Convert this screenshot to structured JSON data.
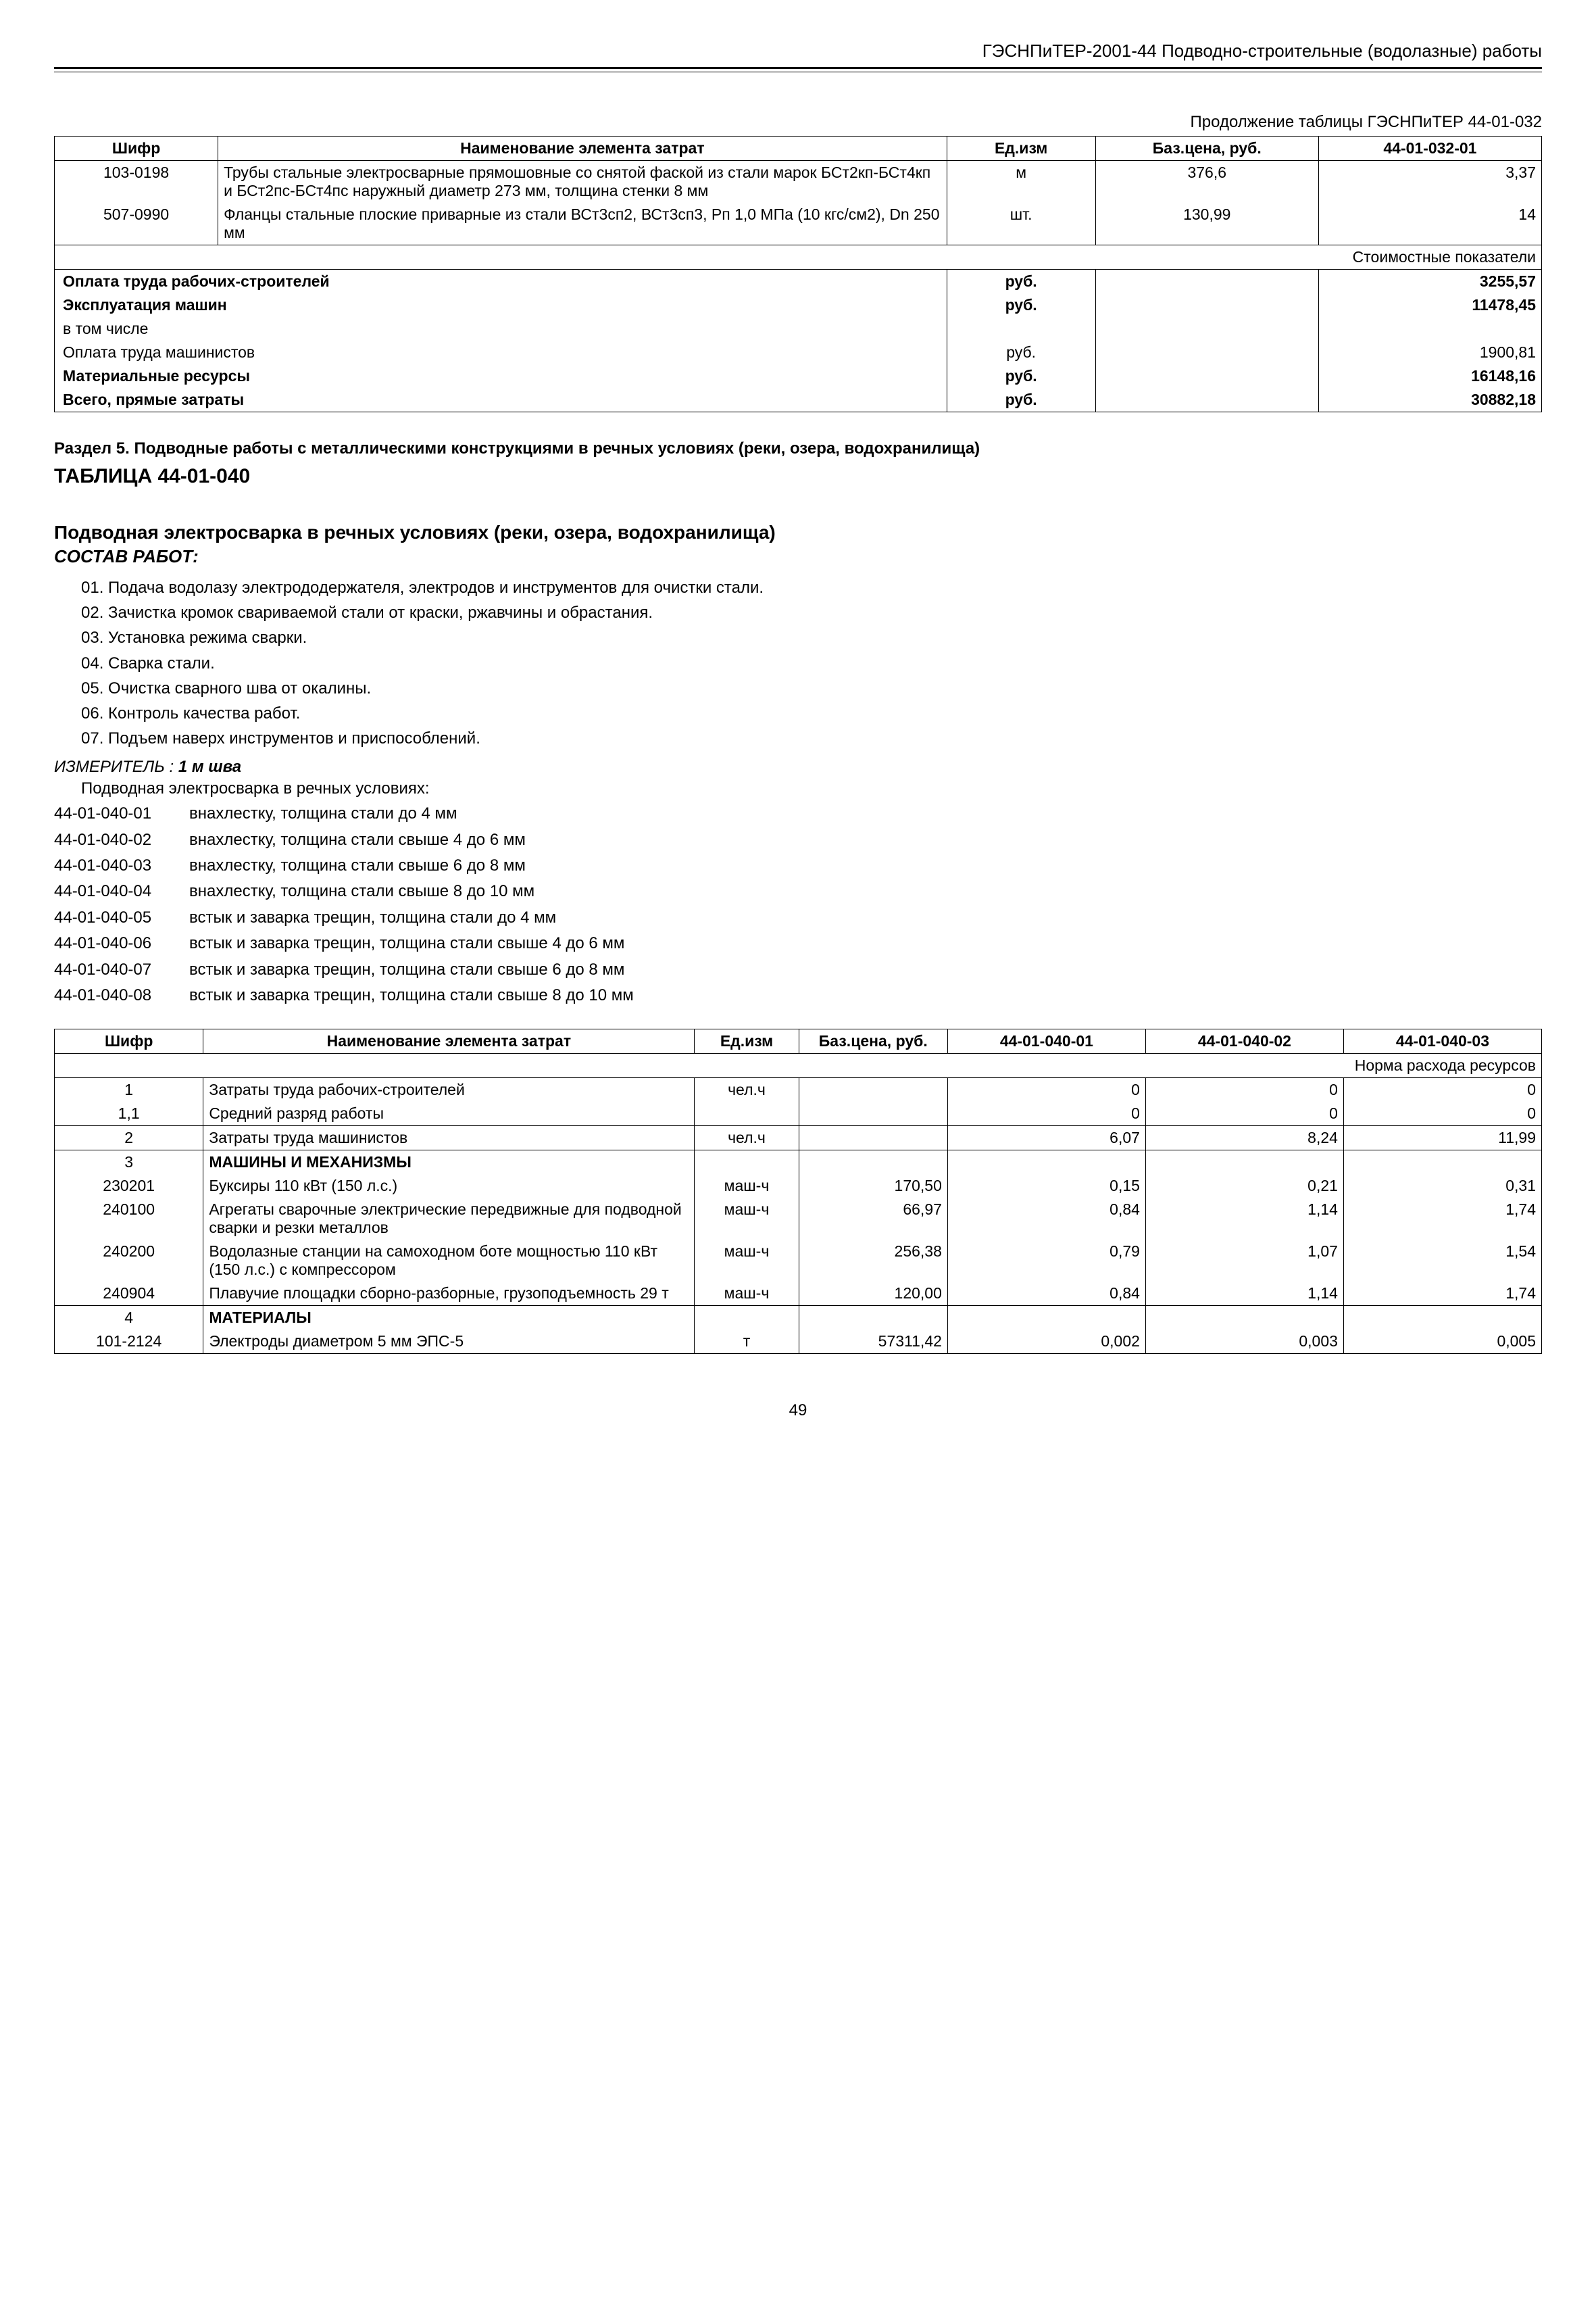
{
  "header": "ГЭСНПиТЕР-2001-44 Подводно-строительные (водолазные) работы",
  "continuation": "Продолжение таблицы ГЭСНПиТЕР 44-01-032",
  "table1": {
    "headers": [
      "Шифр",
      "Наименование элемента затрат",
      "Ед.изм",
      "Баз.цена, руб.",
      "44-01-032-01"
    ],
    "rows": [
      {
        "code": "103-0198",
        "name": "Трубы стальные электросварные прямошовные со снятой фаской из стали марок БСт2кп-БСт4кп и БСт2пс-БСт4пс наружный диаметр 273 мм, толщина стенки 8 мм",
        "unit": "м",
        "price": "376,6",
        "val": "3,37"
      },
      {
        "code": "507-0990",
        "name": "Фланцы стальные плоские приварные из стали ВСт3сп2, ВСт3сп3, Рп 1,0 МПа (10 кгс/см2), Dn 250 мм",
        "unit": "шт.",
        "price": "130,99",
        "val": "14"
      }
    ],
    "cost_header": "Стоимостные показатели",
    "cost_rows": [
      {
        "label": "Оплата труда рабочих-строителей",
        "unit": "руб.",
        "val": "3255,57",
        "bold": true
      },
      {
        "label": "Эксплуатация машин",
        "unit": "руб.",
        "val": "11478,45",
        "bold": true
      },
      {
        "label": "в том числе",
        "unit": "",
        "val": "",
        "bold": false
      },
      {
        "label": "Оплата труда машинистов",
        "unit": "руб.",
        "val": "1900,81",
        "bold": false
      },
      {
        "label": "Материальные ресурсы",
        "unit": "руб.",
        "val": "16148,16",
        "bold": true
      },
      {
        "label": "Всего, прямые затраты",
        "unit": "руб.",
        "val": "30882,18",
        "bold": true
      }
    ]
  },
  "section5": "Раздел 5. Подводные работы с металлическими конструкциями в речных условиях (реки, озера, водохранилища)",
  "table_no": "ТАБЛИЦА 44-01-040",
  "subtitle": "Подводная электросварка в речных условиях (реки, озера, водохранилища)",
  "subtitle2": "СОСТАВ РАБОТ:",
  "works": [
    "01. Подача водолазу электрододержателя, электродов и инструментов для очистки стали.",
    "02. Зачистка кромок свариваемой стали от краски, ржавчины и обрастания.",
    "03. Установка режима сварки.",
    "04. Сварка стали.",
    "05. Очистка сварного шва от окалины.",
    "06. Контроль качества работ.",
    "07. Подъем наверх инструментов и приспособлений."
  ],
  "measure_label": "ИЗМЕРИТЕЛЬ :",
  "measure_val": "1 м шва",
  "variant_intro": "Подводная электросварка в речных условиях:",
  "variants": [
    {
      "code": "44-01-040-01",
      "text": "внахлестку, толщина стали до 4 мм"
    },
    {
      "code": "44-01-040-02",
      "text": "внахлестку, толщина стали свыше 4 до 6 мм"
    },
    {
      "code": "44-01-040-03",
      "text": "внахлестку, толщина стали свыше 6 до 8 мм"
    },
    {
      "code": "44-01-040-04",
      "text": "внахлестку, толщина стали свыше 8 до 10 мм"
    },
    {
      "code": "44-01-040-05",
      "text": "встык и заварка трещин, толщина стали до 4 мм"
    },
    {
      "code": "44-01-040-06",
      "text": "встык и заварка трещин, толщина стали свыше 4 до 6 мм"
    },
    {
      "code": "44-01-040-07",
      "text": "встык и заварка трещин, толщина стали свыше 6 до 8 мм"
    },
    {
      "code": "44-01-040-08",
      "text": "встык и заварка трещин, толщина стали свыше 8 до 10 мм"
    }
  ],
  "table2": {
    "headers": [
      "Шифр",
      "Наименование элемента затрат",
      "Ед.изм",
      "Баз.цена, руб.",
      "44-01-040-01",
      "44-01-040-02",
      "44-01-040-03"
    ],
    "norm_header": "Норма расхода ресурсов",
    "rows": [
      {
        "code": "1",
        "name": "Затраты труда рабочих-строителей",
        "unit": "чел.ч",
        "price": "",
        "v1": "0",
        "v2": "0",
        "v3": "0",
        "bold": false,
        "top": true
      },
      {
        "code": "1,1",
        "name": "Средний разряд работы",
        "unit": "",
        "price": "",
        "v1": "0",
        "v2": "0",
        "v3": "0",
        "bold": false,
        "top": false
      },
      {
        "code": "2",
        "name": "Затраты труда машинистов",
        "unit": "чел.ч",
        "price": "",
        "v1": "6,07",
        "v2": "8,24",
        "v3": "11,99",
        "bold": false,
        "top": true
      },
      {
        "code": "3",
        "name": "МАШИНЫ И МЕХАНИЗМЫ",
        "unit": "",
        "price": "",
        "v1": "",
        "v2": "",
        "v3": "",
        "bold": true,
        "top": true
      },
      {
        "code": "230201",
        "name": "Буксиры 110 кВт (150 л.с.)",
        "unit": "маш-ч",
        "price": "170,50",
        "v1": "0,15",
        "v2": "0,21",
        "v3": "0,31",
        "bold": false,
        "top": false
      },
      {
        "code": "240100",
        "name": "Агрегаты сварочные электрические передвижные для подводной сварки и резки металлов",
        "unit": "маш-ч",
        "price": "66,97",
        "v1": "0,84",
        "v2": "1,14",
        "v3": "1,74",
        "bold": false,
        "top": false
      },
      {
        "code": "240200",
        "name": "Водолазные станции на самоходном боте мощностью 110 кВт (150 л.с.) с компрессором",
        "unit": "маш-ч",
        "price": "256,38",
        "v1": "0,79",
        "v2": "1,07",
        "v3": "1,54",
        "bold": false,
        "top": false
      },
      {
        "code": "240904",
        "name": "Плавучие площадки сборно-разборные, грузоподъемность 29 т",
        "unit": "маш-ч",
        "price": "120,00",
        "v1": "0,84",
        "v2": "1,14",
        "v3": "1,74",
        "bold": false,
        "top": false
      },
      {
        "code": "4",
        "name": "МАТЕРИАЛЫ",
        "unit": "",
        "price": "",
        "v1": "",
        "v2": "",
        "v3": "",
        "bold": true,
        "top": true
      },
      {
        "code": "101-2124",
        "name": "Электроды диаметром 5 мм ЭПС-5",
        "unit": "т",
        "price": "57311,42",
        "v1": "0,002",
        "v2": "0,003",
        "v3": "0,005",
        "bold": false,
        "top": false
      }
    ]
  },
  "page_num": "49"
}
